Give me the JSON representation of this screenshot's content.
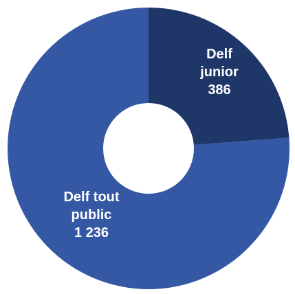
{
  "chart_data": {
    "type": "pie",
    "donut": true,
    "series": [
      {
        "values": [
          1236,
          386
        ],
        "labels": [
          "Delf tout public",
          "Delf junior"
        ],
        "value_labels": [
          "1 236",
          "386"
        ],
        "colors": [
          "#3458a3",
          "#1f3668"
        ],
        "label_lines": [
          [
            "Delf tout",
            "public",
            "1 236"
          ],
          [
            "Delf",
            "junior",
            "386"
          ]
        ]
      }
    ],
    "legend": "none"
  }
}
